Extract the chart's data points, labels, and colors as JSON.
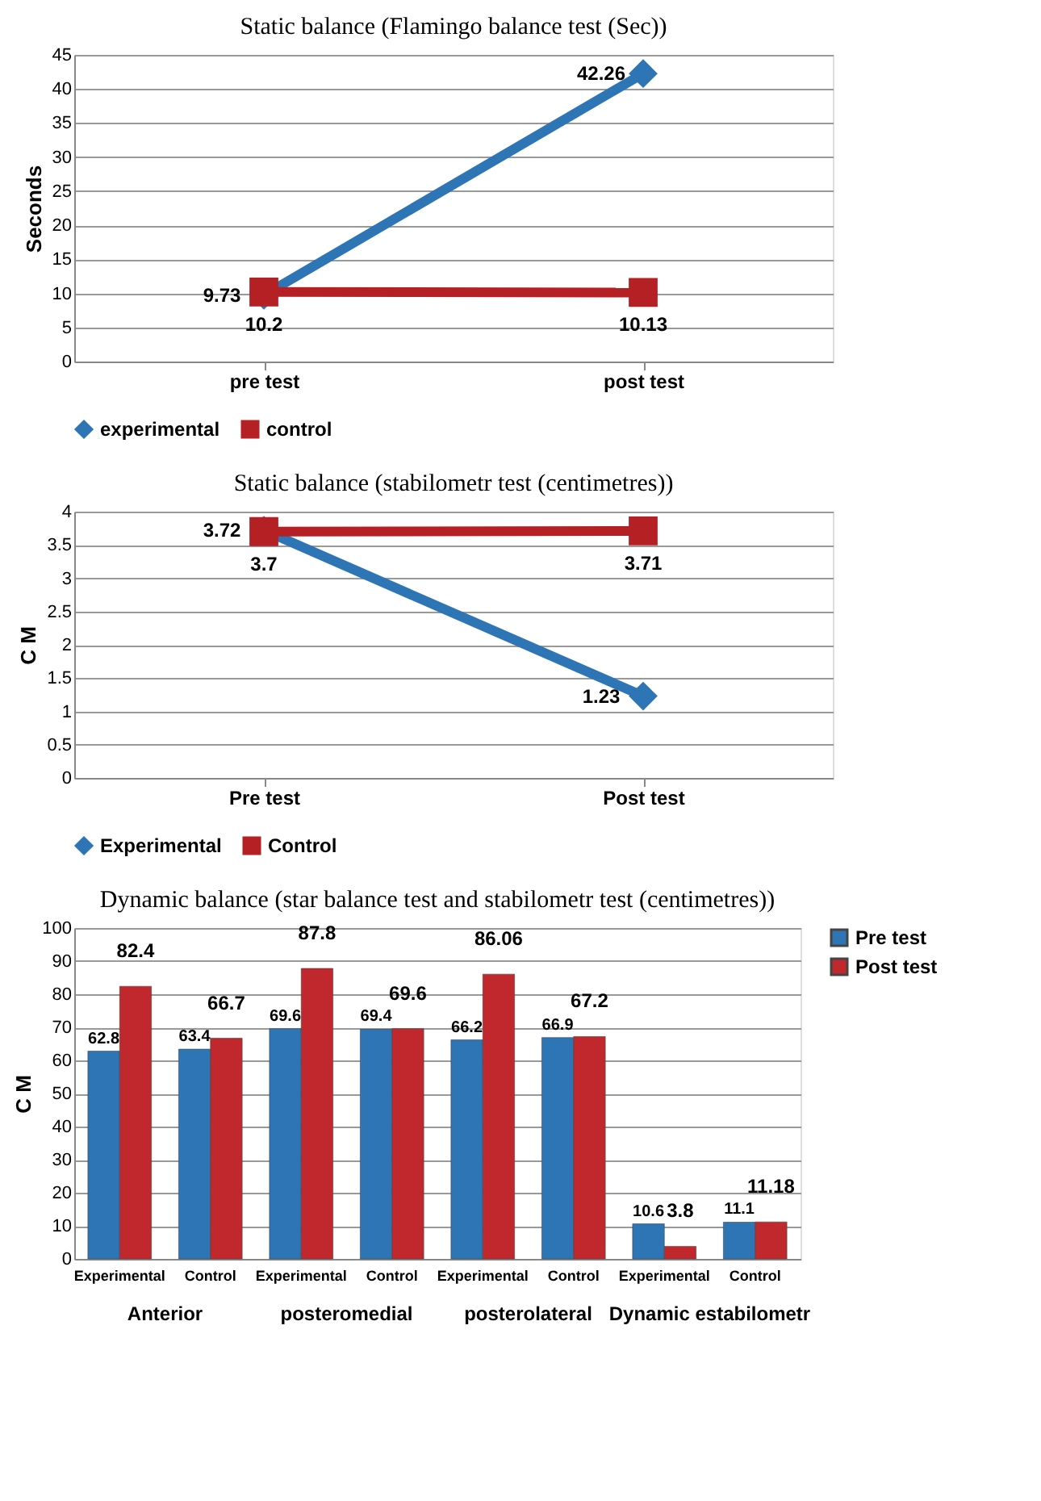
{
  "chart_data": [
    {
      "type": "line",
      "title": "Static balance (Flamingo balance test (Sec))",
      "ylabel": "Seconds",
      "categories": [
        "pre test",
        "post test"
      ],
      "ylim": [
        0,
        45
      ],
      "yticks": [
        0,
        5,
        10,
        15,
        20,
        25,
        30,
        35,
        40,
        45
      ],
      "grid": "y",
      "legend": "bottom",
      "data_labels": true,
      "line_style": "solid",
      "series": [
        {
          "name": "experimental",
          "color": "#2e75b6",
          "marker": "diamond",
          "values": [
            9.73,
            42.26
          ]
        },
        {
          "name": "control",
          "color": "#b52025",
          "marker": "square",
          "values": [
            10.2,
            10.13
          ]
        }
      ]
    },
    {
      "type": "line",
      "title": "Static balance (stabilometr test (centimetres))",
      "ylabel": "C M",
      "categories": [
        "Pre test",
        "Post test"
      ],
      "ylim": [
        0,
        4
      ],
      "yticks": [
        0,
        0.5,
        1,
        1.5,
        2,
        2.5,
        3,
        3.5,
        4
      ],
      "grid": "y",
      "legend": "bottom",
      "data_labels": true,
      "line_style": "solid",
      "series": [
        {
          "name": "Experimental",
          "color": "#2e75b6",
          "marker": "diamond",
          "values": [
            3.72,
            1.23
          ]
        },
        {
          "name": "Control",
          "color": "#b52025",
          "marker": "square",
          "values": [
            3.7,
            3.71
          ]
        }
      ]
    },
    {
      "type": "bar",
      "title": "Dynamic balance (star balance test and stabilometr test (centimetres))",
      "ylabel": "C M",
      "categories": [
        "Experimental",
        "Control",
        "Experimental",
        "Control",
        "Experimental",
        "Control",
        "Experimental",
        "Control"
      ],
      "ylim": [
        0,
        100
      ],
      "yticks": [
        0,
        10,
        20,
        30,
        40,
        50,
        60,
        70,
        80,
        90,
        100
      ],
      "grid": "y",
      "legend": "right",
      "data_labels": true,
      "annotations": [
        "Anterior",
        "posteromedial",
        "posterolateral",
        "Dynamic estabilometr"
      ],
      "series": [
        {
          "name": "Pre test",
          "color": "#2e75b6",
          "values": [
            62.8,
            63.4,
            69.6,
            69.4,
            66.2,
            66.9,
            10.6,
            11.1
          ]
        },
        {
          "name": "Post test",
          "color": "#c0282d",
          "values": [
            82.4,
            66.7,
            87.8,
            69.6,
            86.06,
            67.2,
            3.8,
            11.18
          ]
        }
      ]
    }
  ]
}
